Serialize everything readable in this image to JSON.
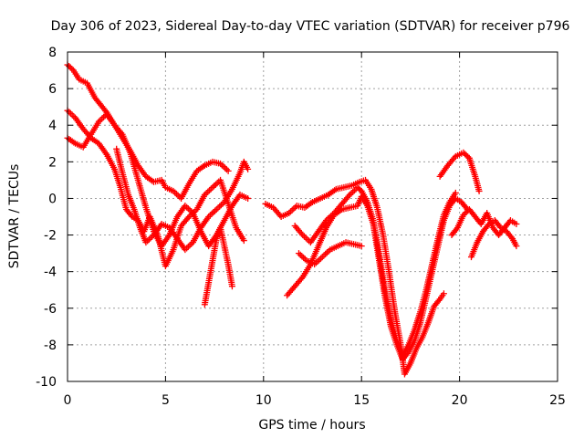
{
  "chart_data": {
    "type": "scatter",
    "title": "Day 306 of 2023, Sidereal Day-to-day VTEC variation (SDTVAR) for receiver p796",
    "xlabel": "GPS time / hours",
    "ylabel": "SDTVAR / TECUs",
    "xlim": [
      0,
      25
    ],
    "ylim": [
      -10,
      8
    ],
    "xticks": [
      0,
      5,
      10,
      15,
      20,
      25
    ],
    "yticks": [
      -10,
      -8,
      -6,
      -4,
      -2,
      0,
      2,
      4,
      6,
      8
    ],
    "grid": true,
    "legend": "none",
    "marker": "plus",
    "color": "#ff0000",
    "series": [
      {
        "x": [
          0,
          0.3,
          0.6,
          1.0,
          1.4,
          1.7,
          2.0,
          2.4,
          2.8,
          3.2,
          3.6,
          4.0,
          4.4,
          4.8,
          5.0,
          5.4,
          5.8,
          6.2,
          6.6,
          7.0,
          7.4,
          7.8,
          8.2
        ],
        "y": [
          7.3,
          7.0,
          6.5,
          6.3,
          5.5,
          5.1,
          4.7,
          4.0,
          3.3,
          2.6,
          1.8,
          1.2,
          0.9,
          1.0,
          0.6,
          0.4,
          0.0,
          0.8,
          1.5,
          1.8,
          2.0,
          1.9,
          1.5
        ]
      },
      {
        "x": [
          0,
          0.4,
          0.8,
          1.2,
          1.6,
          2.0,
          2.4,
          2.7,
          3.0,
          3.3,
          3.6,
          3.9,
          4.2,
          4.6,
          5.0,
          5.4,
          5.8,
          6.2,
          6.6,
          7.0,
          7.4,
          7.8,
          8.2,
          8.6,
          9.0
        ],
        "y": [
          4.8,
          4.4,
          3.8,
          3.3,
          3.0,
          2.4,
          1.6,
          0.6,
          -0.6,
          -1.0,
          -1.2,
          -1.8,
          -1.0,
          -2.0,
          -3.7,
          -2.8,
          -1.5,
          -1.0,
          -0.6,
          0.2,
          0.6,
          1.0,
          -0.3,
          -1.6,
          -2.3
        ]
      },
      {
        "x": [
          0,
          0.4,
          0.8,
          1.2,
          1.6,
          2.0,
          2.4,
          2.8,
          3.2,
          3.6,
          4.0,
          4.4,
          4.8,
          5.2,
          5.6,
          6.0,
          6.4,
          6.8,
          7.2,
          7.6,
          8.0,
          8.4,
          8.8,
          9.2
        ],
        "y": [
          3.3,
          3.0,
          2.8,
          3.5,
          4.2,
          4.6,
          4.0,
          3.5,
          2.5,
          1.0,
          -0.5,
          -1.8,
          -2.6,
          -2.0,
          -1.0,
          -0.4,
          -0.8,
          -1.8,
          -2.6,
          -2.0,
          -1.2,
          -0.4,
          0.2,
          0.0
        ]
      },
      {
        "x": [
          2.5,
          2.8,
          3.1,
          3.4,
          3.7,
          4.0,
          4.4,
          4.8,
          5.2,
          5.6,
          6.0,
          6.4,
          6.8,
          7.2,
          7.6,
          8.0,
          8.4,
          8.8,
          9.0,
          9.2
        ],
        "y": [
          2.7,
          1.4,
          0.2,
          -0.6,
          -1.6,
          -2.4,
          -2.0,
          -1.4,
          -1.6,
          -2.2,
          -2.8,
          -2.4,
          -1.6,
          -1.0,
          -0.6,
          -0.2,
          0.5,
          1.4,
          2.0,
          1.6
        ]
      },
      {
        "x": [
          7.0,
          7.2,
          7.4,
          7.6,
          7.8,
          8.0,
          8.2,
          8.4
        ],
        "y": [
          -5.8,
          -4.6,
          -3.4,
          -2.2,
          -1.6,
          -2.6,
          -3.6,
          -4.8
        ]
      },
      {
        "x": [
          10.1,
          10.5,
          10.9,
          11.3,
          11.7,
          12.1,
          12.5,
          12.9,
          13.3,
          13.7,
          14.1,
          14.5,
          14.9,
          15.2,
          15.5,
          15.8,
          16.1,
          16.4,
          16.7,
          17.0,
          17.2,
          17.5,
          17.8,
          18.1,
          18.4,
          18.7,
          19.0,
          19.2
        ],
        "y": [
          -0.3,
          -0.5,
          -1.0,
          -0.8,
          -0.4,
          -0.5,
          -0.2,
          0.0,
          0.2,
          0.5,
          0.6,
          0.7,
          0.9,
          1.0,
          0.5,
          -0.5,
          -2.0,
          -4.0,
          -6.2,
          -8.0,
          -9.6,
          -9.0,
          -8.2,
          -7.6,
          -6.8,
          -5.9,
          -5.5,
          -5.2
        ]
      },
      {
        "x": [
          11.2,
          11.6,
          12.0,
          12.4,
          12.8,
          13.2,
          13.6,
          14.0,
          14.4,
          14.8,
          15.0,
          15.3,
          15.6,
          15.9,
          16.2,
          16.5,
          16.8,
          17.1,
          17.4,
          17.7,
          18.0,
          18.3,
          18.6,
          18.9,
          19.2,
          19.5,
          19.8,
          20.1,
          20.4
        ],
        "y": [
          -5.3,
          -4.8,
          -4.3,
          -3.6,
          -2.6,
          -1.6,
          -0.9,
          -0.6,
          -0.5,
          -0.4,
          0.1,
          -0.4,
          -1.4,
          -3.4,
          -5.4,
          -7.0,
          -8.0,
          -8.8,
          -8.4,
          -7.8,
          -6.8,
          -5.4,
          -4.0,
          -2.6,
          -1.2,
          -0.4,
          0.0,
          -0.2,
          -0.6
        ]
      },
      {
        "x": [
          11.6,
          12.0,
          12.4,
          12.8,
          13.2,
          13.6,
          14.0,
          14.4,
          14.8,
          15.0,
          15.3,
          15.6,
          15.9,
          16.2,
          16.5,
          16.8,
          17.1,
          17.4,
          17.7,
          18.0,
          18.3,
          18.6,
          18.9,
          19.2,
          19.5,
          19.8
        ],
        "y": [
          -1.5,
          -2.0,
          -2.4,
          -1.8,
          -1.2,
          -0.8,
          -0.3,
          0.2,
          0.6,
          0.4,
          -0.2,
          -1.2,
          -3.0,
          -5.0,
          -6.6,
          -7.8,
          -8.6,
          -8.0,
          -7.2,
          -6.2,
          -5.0,
          -3.6,
          -2.2,
          -0.9,
          -0.2,
          0.3
        ]
      },
      {
        "x": [
          11.8,
          12.2,
          12.6,
          13.0,
          13.4,
          13.8,
          14.2,
          14.6,
          15.0
        ],
        "y": [
          -3.0,
          -3.4,
          -3.6,
          -3.2,
          -2.8,
          -2.6,
          -2.4,
          -2.5,
          -2.6
        ]
      },
      {
        "x": [
          19.0,
          19.4,
          19.8,
          20.2,
          20.5,
          20.8,
          21.0
        ],
        "y": [
          1.2,
          1.8,
          2.3,
          2.5,
          2.2,
          1.2,
          0.4
        ]
      },
      {
        "x": [
          19.6,
          19.9,
          20.2,
          20.5,
          20.8,
          21.1,
          21.4,
          21.7,
          22.0,
          22.3,
          22.6,
          22.9
        ],
        "y": [
          -2.0,
          -1.6,
          -0.9,
          -0.6,
          -1.0,
          -1.4,
          -0.8,
          -1.6,
          -2.0,
          -1.6,
          -1.2,
          -1.4
        ]
      },
      {
        "x": [
          20.6,
          20.9,
          21.2,
          21.5,
          21.8,
          22.1,
          22.4,
          22.7,
          22.9
        ],
        "y": [
          -3.2,
          -2.4,
          -1.8,
          -1.4,
          -1.2,
          -1.6,
          -1.8,
          -2.2,
          -2.6
        ]
      }
    ]
  }
}
